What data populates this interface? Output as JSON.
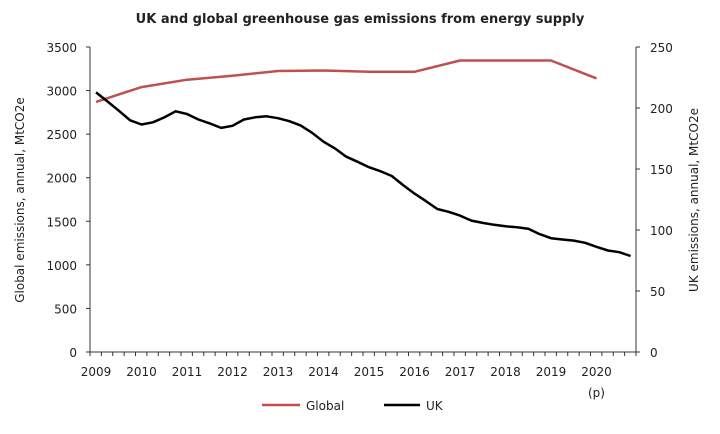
{
  "chart_data": {
    "type": "line",
    "title": "UK and global greenhouse gas emissions from energy supply",
    "x_tick_labels": [
      "2009",
      "2010",
      "2011",
      "2012",
      "2013",
      "2014",
      "2015",
      "2016",
      "2017",
      "2018",
      "2019",
      "2020"
    ],
    "x_tick_note": "(p)",
    "xlim": [
      2009,
      2020.75
    ],
    "ylabel_left": "Global emissions, annual, MtCO2e",
    "ylabel_right": "UK emissions, annual, MtCO2e",
    "ylim_left": [
      0,
      3500
    ],
    "ylim_right": [
      0,
      250
    ],
    "y_ticks_left": [
      "0",
      "500",
      "1000",
      "1500",
      "2000",
      "2500",
      "3000",
      "3500"
    ],
    "y_ticks_right": [
      "0",
      "50",
      "100",
      "150",
      "200",
      "250"
    ],
    "grid": false,
    "legend_position": "bottom",
    "series": [
      {
        "name": "Global",
        "axis": "left",
        "color": "#c0504d",
        "x": [
          2009,
          2010,
          2011,
          2012,
          2013,
          2014,
          2015,
          2016,
          2017,
          2018,
          2019,
          2020
        ],
        "values": [
          2870,
          3040,
          3125,
          3170,
          3225,
          3230,
          3215,
          3215,
          3345,
          3345,
          3345,
          3140
        ]
      },
      {
        "name": "UK",
        "axis": "right",
        "color": "#000000",
        "x_start": 2009,
        "x_step": 0.25,
        "values": [
          212.8,
          205.4,
          197.8,
          189.9,
          186.5,
          188.3,
          192.3,
          197.3,
          195.1,
          190.6,
          187.4,
          183.7,
          185.4,
          190.6,
          192.4,
          193.2,
          191.6,
          189.2,
          185.6,
          179.7,
          172.4,
          166.9,
          160.1,
          155.9,
          151.5,
          148.2,
          144.3,
          136.8,
          129.8,
          123.7,
          117.2,
          114.9,
          111.8,
          107.7,
          105.8,
          104.3,
          103.0,
          102.3,
          101.1,
          96.6,
          93.3,
          92.2,
          91.3,
          89.5,
          86.2,
          83.2,
          81.8,
          78.7
        ]
      }
    ]
  }
}
